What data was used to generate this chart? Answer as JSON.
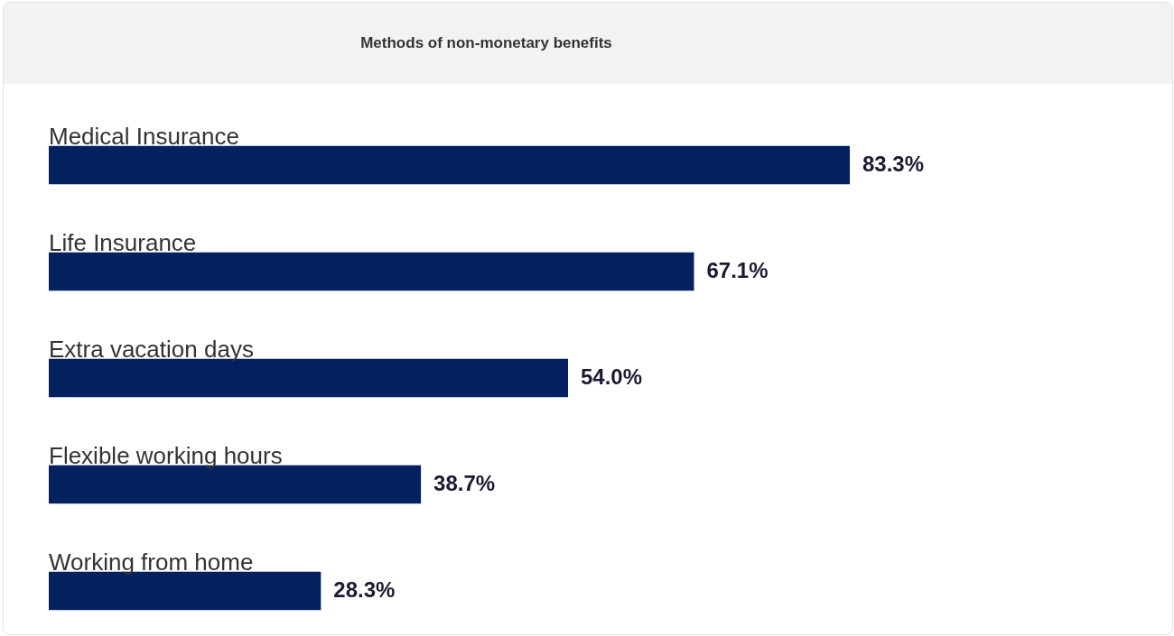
{
  "chart_data": {
    "type": "bar",
    "orientation": "horizontal",
    "title": "Methods of non-monetary benefits",
    "categories": [
      "Medical Insurance",
      "Life Insurance",
      "Extra vacation days",
      "Flexible working hours",
      "Working from home"
    ],
    "values": [
      83.3,
      67.1,
      54.0,
      38.7,
      28.3
    ],
    "value_labels": [
      "83.3%",
      "67.1%",
      "54.0%",
      "38.7%",
      "28.3%"
    ],
    "color": "#03215e"
  }
}
